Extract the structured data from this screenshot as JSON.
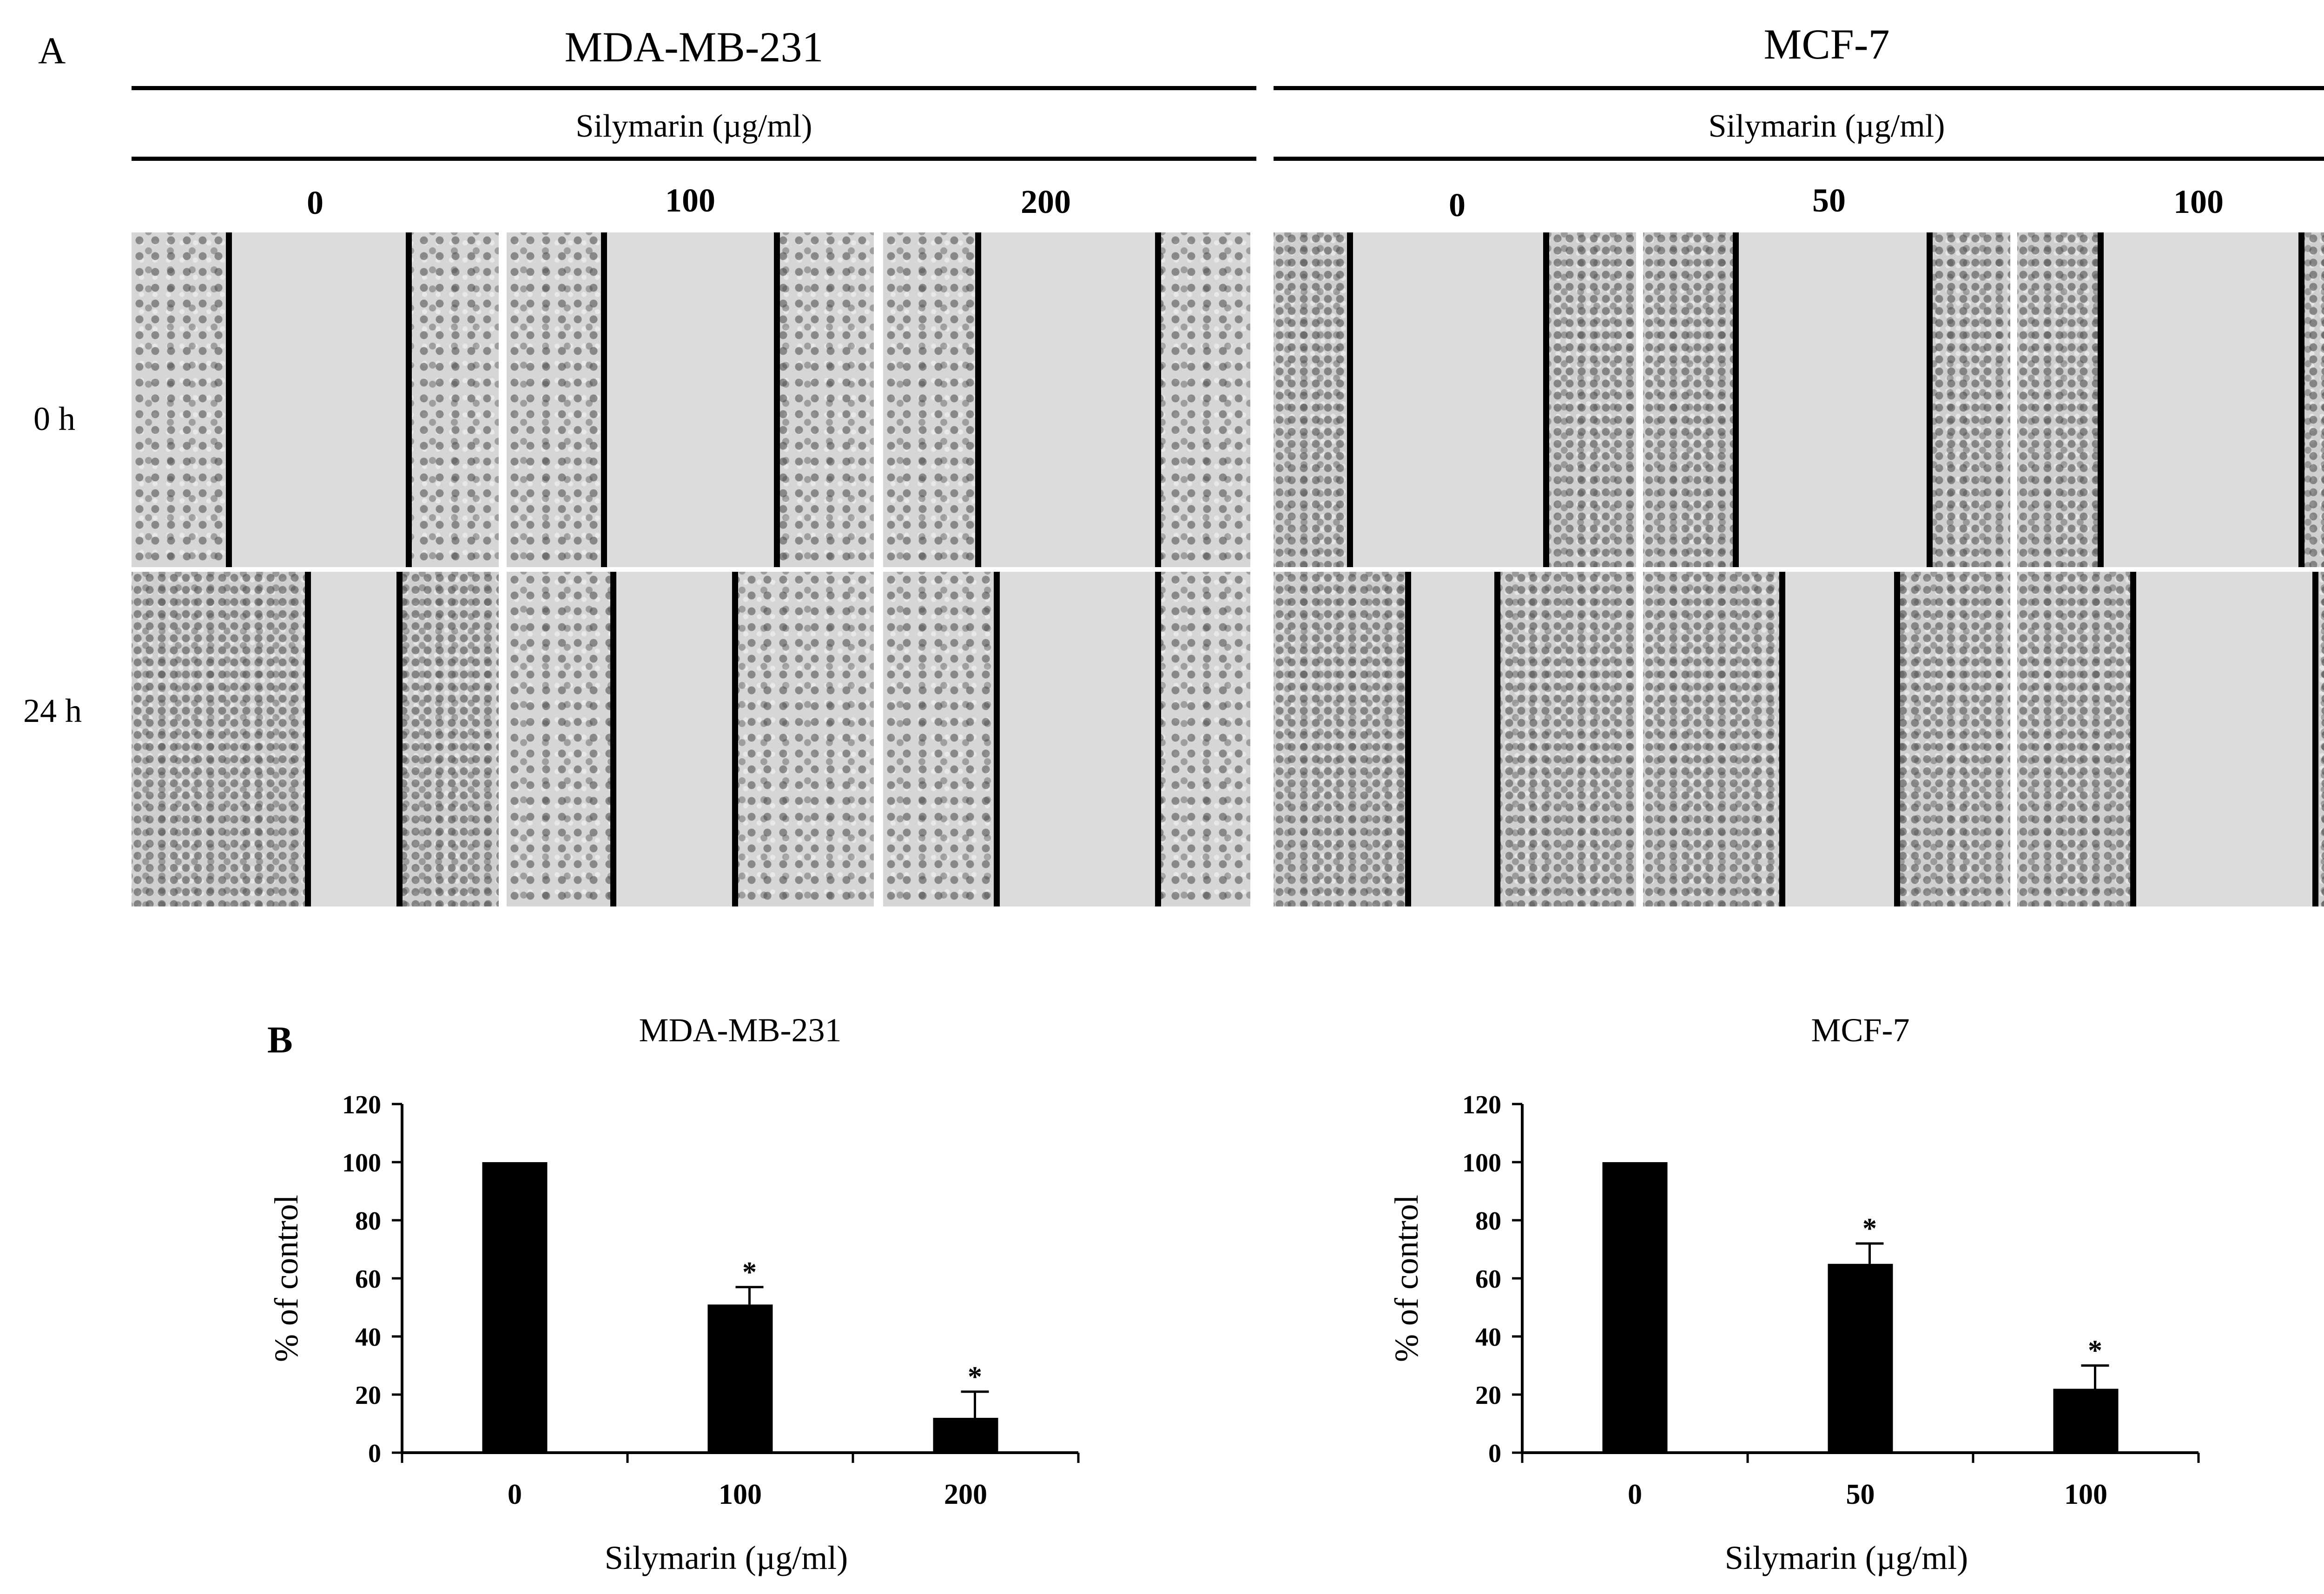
{
  "panel_a": {
    "letter": "A",
    "row_labels": [
      "0 h",
      "24 h"
    ],
    "groups": [
      {
        "title": "MDA-MB-231",
        "subtitle": "Silymarin (µg/ml)",
        "doses": [
          "0",
          "100",
          "200"
        ]
      },
      {
        "title": "MCF-7",
        "subtitle": "Silymarin (µg/ml)",
        "doses": [
          "0",
          "50",
          "100"
        ]
      }
    ]
  },
  "panel_b": {
    "letter": "B"
  },
  "chart_data": [
    {
      "type": "bar",
      "title": "MDA-MB-231",
      "xlabel": "Silymarin (µg/ml)",
      "ylabel": "% of control",
      "categories": [
        "0",
        "100",
        "200"
      ],
      "values": [
        100,
        51,
        12
      ],
      "errors": [
        0,
        6,
        9
      ],
      "annotations": [
        "",
        "*",
        "*"
      ],
      "ylim": [
        0,
        120
      ],
      "yticks": [
        0,
        20,
        40,
        60,
        80,
        100,
        120
      ],
      "bar_color": "#000000",
      "grid": false,
      "legend": "none"
    },
    {
      "type": "bar",
      "title": "MCF-7",
      "xlabel": "Silymarin (µg/ml)",
      "ylabel": "% of control",
      "categories": [
        "0",
        "50",
        "100"
      ],
      "values": [
        100,
        65,
        22
      ],
      "errors": [
        0,
        7,
        8
      ],
      "annotations": [
        "",
        "*",
        "*"
      ],
      "ylim": [
        0,
        120
      ],
      "yticks": [
        0,
        20,
        40,
        60,
        80,
        100,
        120
      ],
      "bar_color": "#000000",
      "grid": false,
      "legend": "none"
    }
  ]
}
